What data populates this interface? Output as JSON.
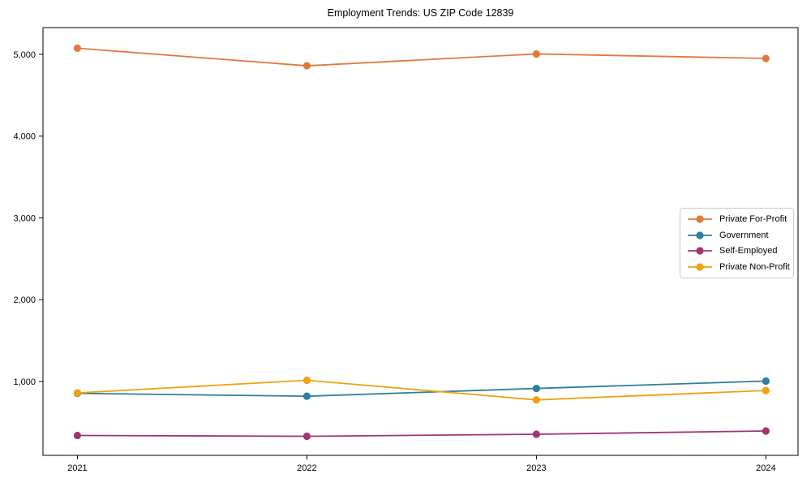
{
  "chart_data": {
    "type": "line",
    "title": "Employment Trends: US ZIP Code 12839",
    "xlabel": "",
    "ylabel": "",
    "x": [
      2021,
      2022,
      2023,
      2024
    ],
    "xticks": [
      {
        "value": 2021,
        "label": "2021"
      },
      {
        "value": 2022,
        "label": "2022"
      },
      {
        "value": 2023,
        "label": "2023"
      },
      {
        "value": 2024,
        "label": "2024"
      }
    ],
    "yticks": [
      {
        "value": 1000,
        "label": "1,000"
      },
      {
        "value": 2000,
        "label": "2,000"
      },
      {
        "value": 3000,
        "label": "3,000"
      },
      {
        "value": 4000,
        "label": "4,000"
      },
      {
        "value": 5000,
        "label": "5,000"
      }
    ],
    "series": [
      {
        "id": "private-for-profit",
        "name": "Private For-Profit",
        "color": "#E07B3C",
        "values": [
          5075,
          4860,
          5005,
          4950
        ]
      },
      {
        "id": "government",
        "name": "Government",
        "color": "#2E7F9E",
        "values": [
          855,
          820,
          915,
          1005
        ]
      },
      {
        "id": "self-employed",
        "name": "Self-Employed",
        "color": "#A03572",
        "values": [
          340,
          330,
          355,
          395
        ]
      },
      {
        "id": "private-non-profit",
        "name": "Private Non-Profit",
        "color": "#F0A010",
        "values": [
          860,
          1015,
          775,
          890
        ]
      }
    ],
    "xlim": [
      2020.85,
      2024.14
    ],
    "ylim": [
      97,
      5327
    ],
    "grid": false,
    "legend_position": "center-right"
  }
}
